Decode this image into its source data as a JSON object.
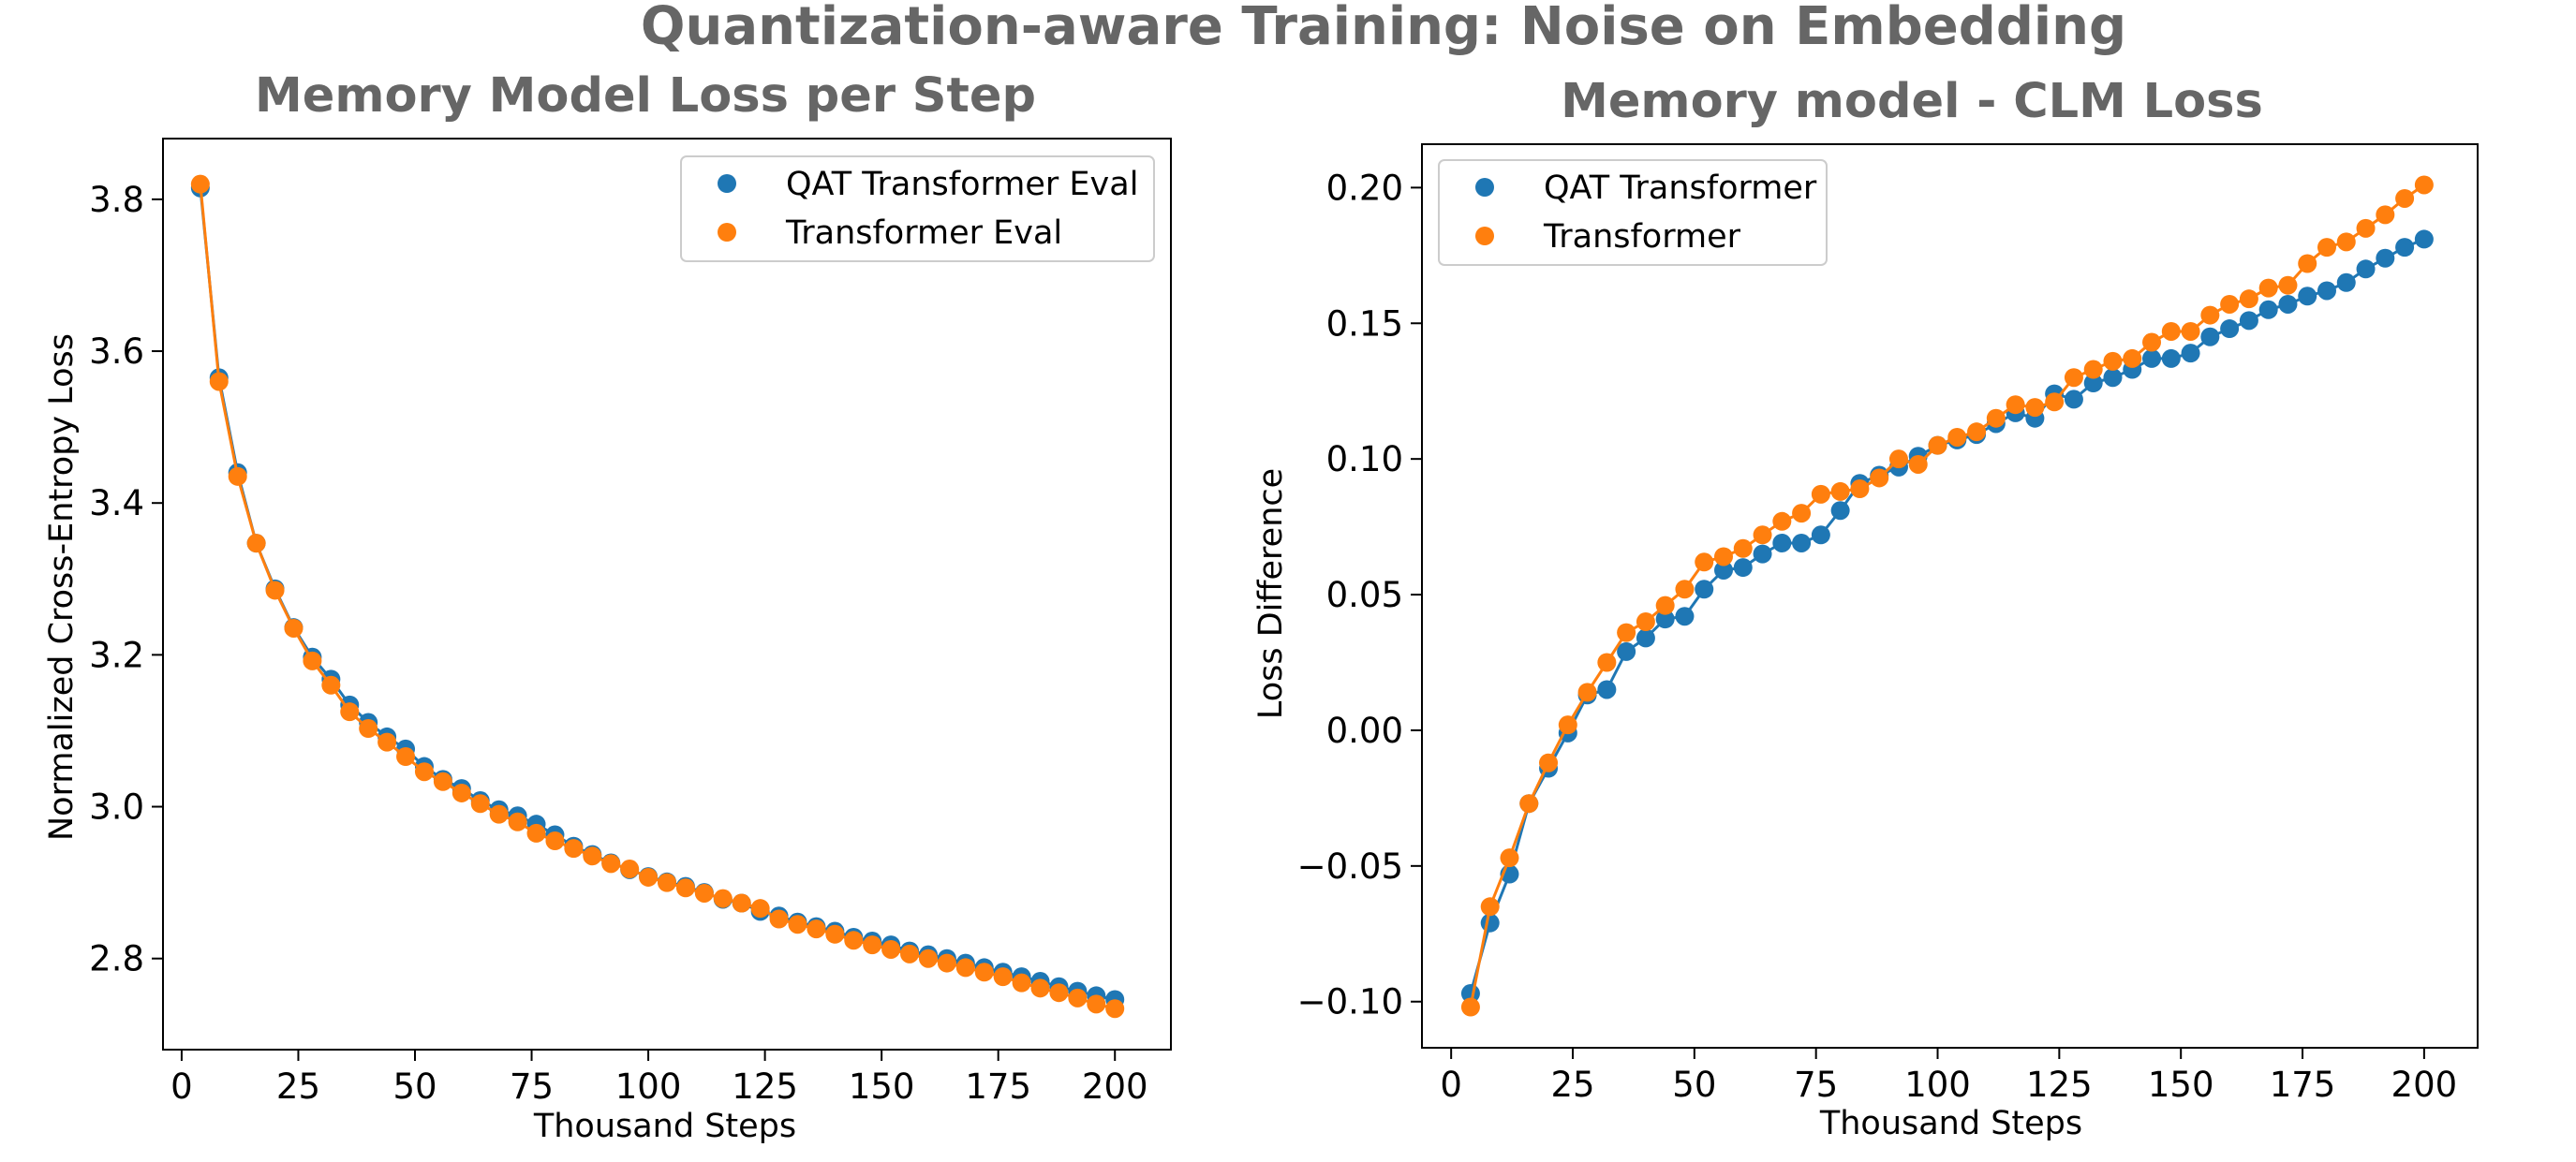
{
  "figure": {
    "suptitle": "Quantization-aware Training: Noise on Embedding"
  },
  "colors": {
    "series_1": "#1f77b4",
    "series_2": "#ff7f0e"
  },
  "chart_data": [
    {
      "type": "line",
      "title": "Memory Model Loss per Step",
      "xlabel": "Thousand Steps",
      "ylabel": "Normalized Cross-Entropy Loss",
      "xlim": [
        -4,
        212
      ],
      "ylim": [
        2.68,
        3.88
      ],
      "xticks": [
        0,
        25,
        50,
        75,
        100,
        125,
        150,
        175,
        200
      ],
      "xtick_labels": [
        "0",
        "25",
        "50",
        "75",
        "100",
        "125",
        "150",
        "175",
        "200"
      ],
      "yticks": [
        2.8,
        3.0,
        3.2,
        3.4,
        3.6,
        3.8
      ],
      "ytick_labels": [
        "2.8",
        "3.0",
        "3.2",
        "3.4",
        "3.6",
        "3.8"
      ],
      "legend": "top-right",
      "x": [
        4,
        8,
        12,
        16,
        20,
        24,
        28,
        32,
        36,
        40,
        44,
        48,
        52,
        56,
        60,
        64,
        68,
        72,
        76,
        80,
        84,
        88,
        92,
        96,
        100,
        104,
        108,
        112,
        116,
        120,
        124,
        128,
        132,
        136,
        140,
        144,
        148,
        152,
        156,
        160,
        164,
        168,
        172,
        176,
        180,
        184,
        188,
        192,
        196,
        200
      ],
      "series": [
        {
          "name": "QAT Transformer Eval",
          "color": "#1f77b4",
          "values": [
            3.815,
            3.565,
            3.44,
            3.347,
            3.287,
            3.236,
            3.197,
            3.168,
            3.134,
            3.111,
            3.092,
            3.076,
            3.053,
            3.036,
            3.024,
            3.008,
            2.996,
            2.988,
            2.977,
            2.963,
            2.948,
            2.937,
            2.926,
            2.917,
            2.908,
            2.901,
            2.895,
            2.887,
            2.878,
            2.873,
            2.862,
            2.856,
            2.848,
            2.842,
            2.836,
            2.828,
            2.823,
            2.818,
            2.81,
            2.805,
            2.8,
            2.794,
            2.788,
            2.782,
            2.776,
            2.77,
            2.763,
            2.757,
            2.751,
            2.746
          ]
        },
        {
          "name": "Transformer Eval",
          "color": "#ff7f0e",
          "values": [
            3.82,
            3.56,
            3.435,
            3.347,
            3.285,
            3.235,
            3.192,
            3.16,
            3.125,
            3.103,
            3.085,
            3.066,
            3.046,
            3.033,
            3.018,
            3.004,
            2.99,
            2.98,
            2.965,
            2.955,
            2.945,
            2.935,
            2.925,
            2.918,
            2.907,
            2.9,
            2.893,
            2.886,
            2.879,
            2.873,
            2.866,
            2.852,
            2.845,
            2.839,
            2.832,
            2.824,
            2.818,
            2.812,
            2.806,
            2.8,
            2.794,
            2.788,
            2.782,
            2.776,
            2.768,
            2.761,
            2.755,
            2.748,
            2.74,
            2.734
          ]
        }
      ]
    },
    {
      "type": "line",
      "title": "Memory model - CLM Loss",
      "xlabel": "Thousand Steps",
      "ylabel": "Loss Difference",
      "xlim": [
        -6,
        211
      ],
      "ylim": [
        -0.117,
        0.216
      ],
      "xticks": [
        0,
        25,
        50,
        75,
        100,
        125,
        150,
        175,
        200
      ],
      "xtick_labels": [
        "0",
        "25",
        "50",
        "75",
        "100",
        "125",
        "150",
        "175",
        "200"
      ],
      "yticks": [
        -0.1,
        -0.05,
        0.0,
        0.05,
        0.1,
        0.15,
        0.2
      ],
      "ytick_labels": [
        "−0.10",
        "−0.05",
        "0.00",
        "0.05",
        "0.10",
        "0.15",
        "0.20"
      ],
      "legend": "top-left",
      "x": [
        4,
        8,
        12,
        16,
        20,
        24,
        28,
        32,
        36,
        40,
        44,
        48,
        52,
        56,
        60,
        64,
        68,
        72,
        76,
        80,
        84,
        88,
        92,
        96,
        100,
        104,
        108,
        112,
        116,
        120,
        124,
        128,
        132,
        136,
        140,
        144,
        148,
        152,
        156,
        160,
        164,
        168,
        172,
        176,
        180,
        184,
        188,
        192,
        196,
        200
      ],
      "series": [
        {
          "name": "QAT Transformer",
          "color": "#1f77b4",
          "values": [
            -0.097,
            -0.071,
            -0.053,
            -0.027,
            -0.014,
            -0.001,
            0.013,
            0.015,
            0.029,
            0.034,
            0.041,
            0.042,
            0.052,
            0.059,
            0.06,
            0.065,
            0.069,
            0.069,
            0.072,
            0.081,
            0.091,
            0.094,
            0.097,
            0.101,
            0.105,
            0.107,
            0.109,
            0.113,
            0.117,
            0.115,
            0.124,
            0.122,
            0.128,
            0.13,
            0.133,
            0.137,
            0.137,
            0.139,
            0.145,
            0.148,
            0.151,
            0.155,
            0.157,
            0.16,
            0.162,
            0.165,
            0.17,
            0.174,
            0.178,
            0.181
          ]
        },
        {
          "name": "Transformer",
          "color": "#ff7f0e",
          "values": [
            -0.102,
            -0.065,
            -0.047,
            -0.027,
            -0.012,
            0.002,
            0.014,
            0.025,
            0.036,
            0.04,
            0.046,
            0.052,
            0.062,
            0.064,
            0.067,
            0.072,
            0.077,
            0.08,
            0.087,
            0.088,
            0.089,
            0.093,
            0.1,
            0.098,
            0.105,
            0.108,
            0.11,
            0.115,
            0.12,
            0.119,
            0.121,
            0.13,
            0.133,
            0.136,
            0.137,
            0.143,
            0.147,
            0.147,
            0.153,
            0.157,
            0.159,
            0.163,
            0.164,
            0.172,
            0.178,
            0.18,
            0.185,
            0.19,
            0.196,
            0.201
          ]
        }
      ]
    }
  ]
}
